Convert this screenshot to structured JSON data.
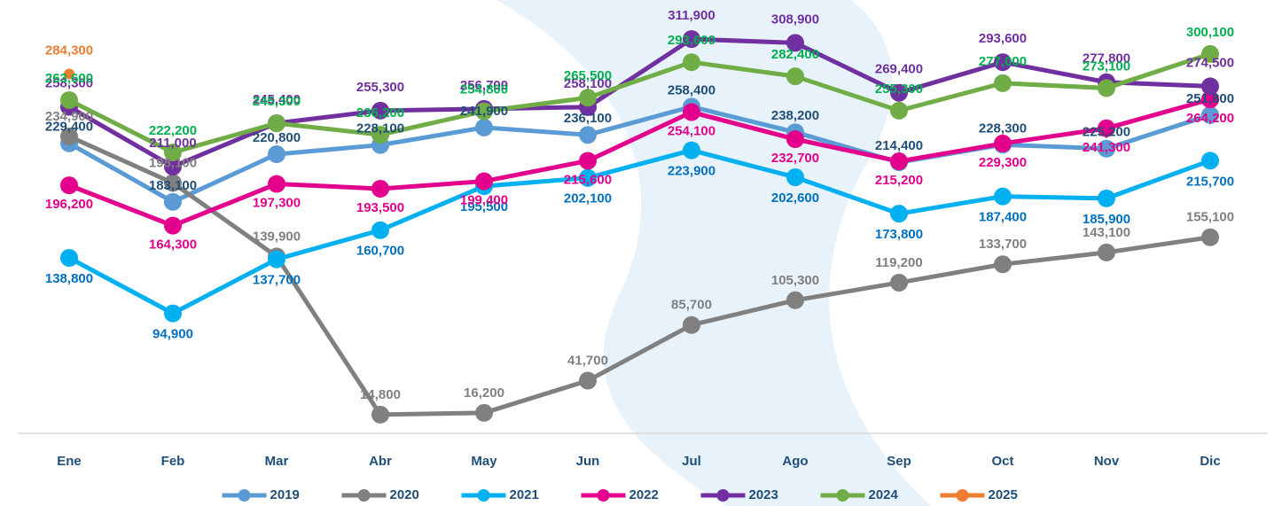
{
  "chart_data": {
    "type": "line",
    "categories": [
      "Ene",
      "Feb",
      "Mar",
      "Abr",
      "May",
      "Jun",
      "Jul",
      "Ago",
      "Sep",
      "Oct",
      "Nov",
      "Dic"
    ],
    "ylim": [
      0,
      340000
    ],
    "series": [
      {
        "name": "2019",
        "color": "#5b9bd5",
        "values": [
          229400,
          183100,
          220800,
          228100,
          241900,
          236100,
          258400,
          238200,
          214400,
          228300,
          225200,
          251800
        ],
        "value_labels": [
          "229,400",
          "183,100",
          "220,800",
          "228,100",
          "241,900",
          "236,100",
          "258,400",
          "238,200",
          "214,400",
          "228,300",
          "225,200",
          "251,800"
        ]
      },
      {
        "name": "2020",
        "color": "#808080",
        "values": [
          234900,
          198100,
          139900,
          14800,
          16200,
          41700,
          85700,
          105300,
          119200,
          133700,
          143100,
          155100
        ],
        "value_labels": [
          "234,900",
          "198,100",
          "139,900",
          "14,800",
          "16,200",
          "41,700",
          "85,700",
          "105,300",
          "119,200",
          "133,700",
          "143,100",
          "155,100"
        ]
      },
      {
        "name": "2021",
        "color": "#00b0f0",
        "values": [
          138800,
          94900,
          137700,
          160700,
          195500,
          202100,
          223900,
          202600,
          173800,
          187400,
          185900,
          215700
        ],
        "value_labels": [
          "138,800",
          "94,900",
          "137,700",
          "160,700",
          "195,500",
          "202,100",
          "223,900",
          "202,600",
          "173,800",
          "187,400",
          "185,900",
          "215,700"
        ]
      },
      {
        "name": "2022",
        "color": "#e3008c",
        "values": [
          196200,
          164300,
          197300,
          193500,
          199400,
          215600,
          254100,
          232700,
          215200,
          229300,
          241300,
          264200
        ],
        "value_labels": [
          "196,200",
          "164,300",
          "197,300",
          "193,500",
          "199,400",
          "215,600",
          "254,100",
          "232,700",
          "215,200",
          "229,300",
          "241,300",
          "264,200"
        ]
      },
      {
        "name": "2023",
        "color": "#7030a0",
        "values": [
          258300,
          211000,
          245400,
          255300,
          256700,
          258100,
          311900,
          308900,
          269400,
          293600,
          277800,
          274500
        ],
        "value_labels": [
          "258,300",
          "211,000",
          "245,400",
          "255,300",
          "256,700",
          "258,100",
          "311,900",
          "308,900",
          "269,400",
          "293,600",
          "277,800",
          "274,500"
        ]
      },
      {
        "name": "2024",
        "color": "#70ad47",
        "values": [
          263600,
          222200,
          245300,
          236200,
          254800,
          265500,
          293600,
          282400,
          255300,
          277000,
          273100,
          300100
        ],
        "value_labels": [
          "263,600",
          "222,200",
          "245,300",
          "236,200",
          "254,800",
          "265,500",
          "293,600",
          "282,400",
          "255,300",
          "277,000",
          "273,100",
          "300,100"
        ]
      },
      {
        "name": "2025",
        "color": "#ed7d31",
        "values": [
          284300,
          null,
          null,
          null,
          null,
          null,
          null,
          null,
          null,
          null,
          null,
          null
        ],
        "value_labels": [
          "284,300",
          null,
          null,
          null,
          null,
          null,
          null,
          null,
          null,
          null,
          null,
          null
        ]
      }
    ]
  }
}
